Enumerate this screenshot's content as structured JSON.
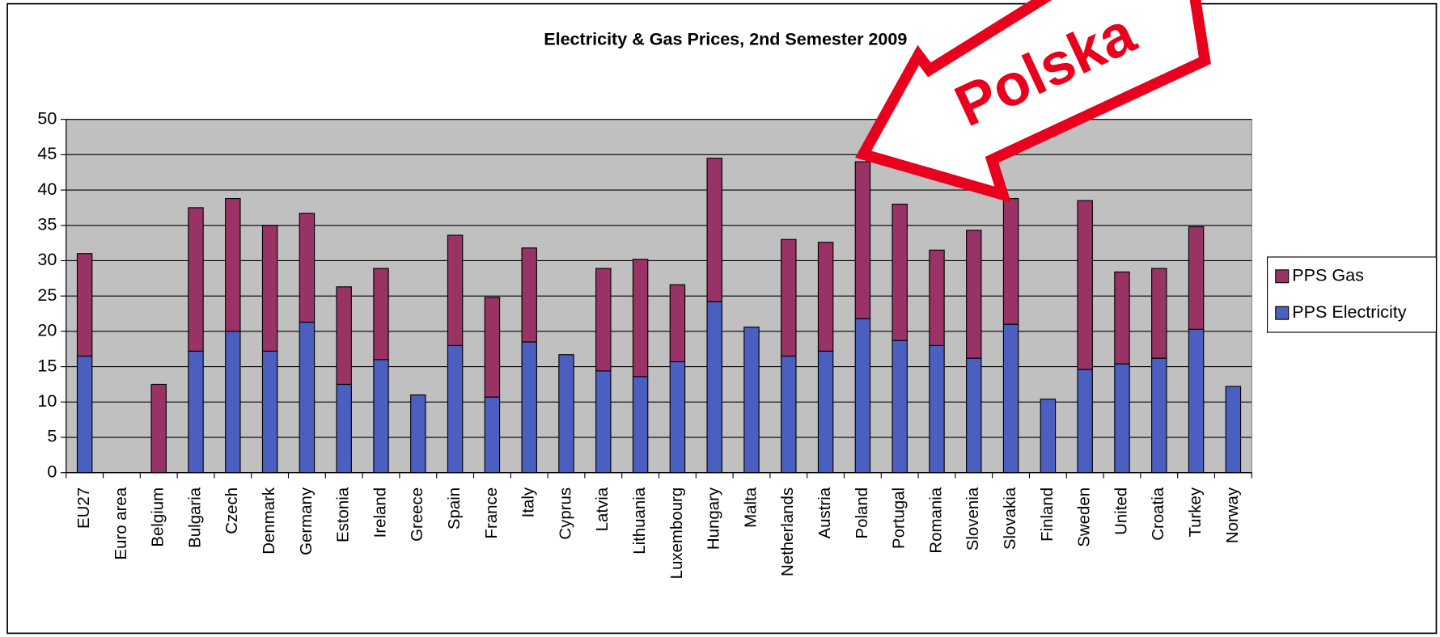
{
  "chart_data": {
    "type": "stacked_bar",
    "title": "Electricity & Gas Prices, 2nd Semester 2009",
    "annotation": "Polska",
    "categories": [
      "EU27",
      "Euro area",
      "Belgium",
      "Bulgaria",
      "Czech",
      "Denmark",
      "Germany",
      "Estonia",
      "Ireland",
      "Greece",
      "Spain",
      "France",
      "Italy",
      "Cyprus",
      "Latvia",
      "Lithuania",
      "Luxembourg",
      "Hungary",
      "Malta",
      "Netherlands",
      "Austria",
      "Poland",
      "Portugal",
      "Romania",
      "Slovenia",
      "Slovakia",
      "Finland",
      "Sweden",
      "United",
      "Croatia",
      "Turkey",
      "Norway"
    ],
    "series": [
      {
        "name": "PPS Electricity",
        "color": "#4a5fbf",
        "values": [
          16.5,
          null,
          null,
          17.2,
          20,
          17.2,
          21.3,
          12.5,
          16,
          11,
          18,
          10.7,
          18.5,
          16.7,
          14.4,
          13.6,
          15.7,
          24.2,
          20.6,
          16.5,
          17.2,
          21.8,
          18.7,
          18,
          16.2,
          21,
          10.4,
          14.6,
          15.4,
          16.2,
          20.3,
          12.2
        ]
      },
      {
        "name": "PPS Gas",
        "color": "#993366",
        "values": [
          14.5,
          null,
          12.5,
          20.3,
          18.8,
          17.8,
          15.4,
          13.8,
          12.9,
          null,
          15.6,
          14.1,
          13.3,
          null,
          14.5,
          16.6,
          10.9,
          20.3,
          null,
          16.5,
          15.4,
          22.2,
          19.3,
          13.5,
          18.1,
          17.8,
          null,
          23.9,
          13,
          12.7,
          14.5,
          null
        ]
      }
    ],
    "ylim": [
      0,
      50
    ],
    "yticks": [
      0,
      5,
      10,
      15,
      20,
      25,
      30,
      35,
      40,
      45,
      50
    ],
    "grid": true,
    "legend": "right",
    "plot_background": "#c0c0c0"
  }
}
